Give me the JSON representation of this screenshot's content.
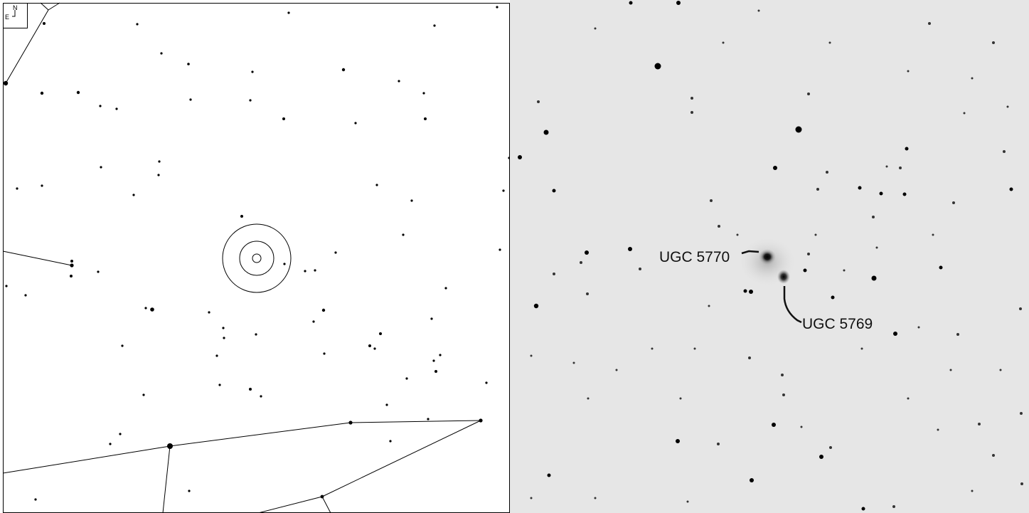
{
  "finder_chart": {
    "compass": {
      "north_label": "N",
      "east_label": "E"
    }
  },
  "sky_image": {
    "annotations": [
      {
        "id": "ugc5770",
        "text": "UGC 5770"
      },
      {
        "id": "ugc5769",
        "text": "UGC 5769"
      }
    ]
  }
}
